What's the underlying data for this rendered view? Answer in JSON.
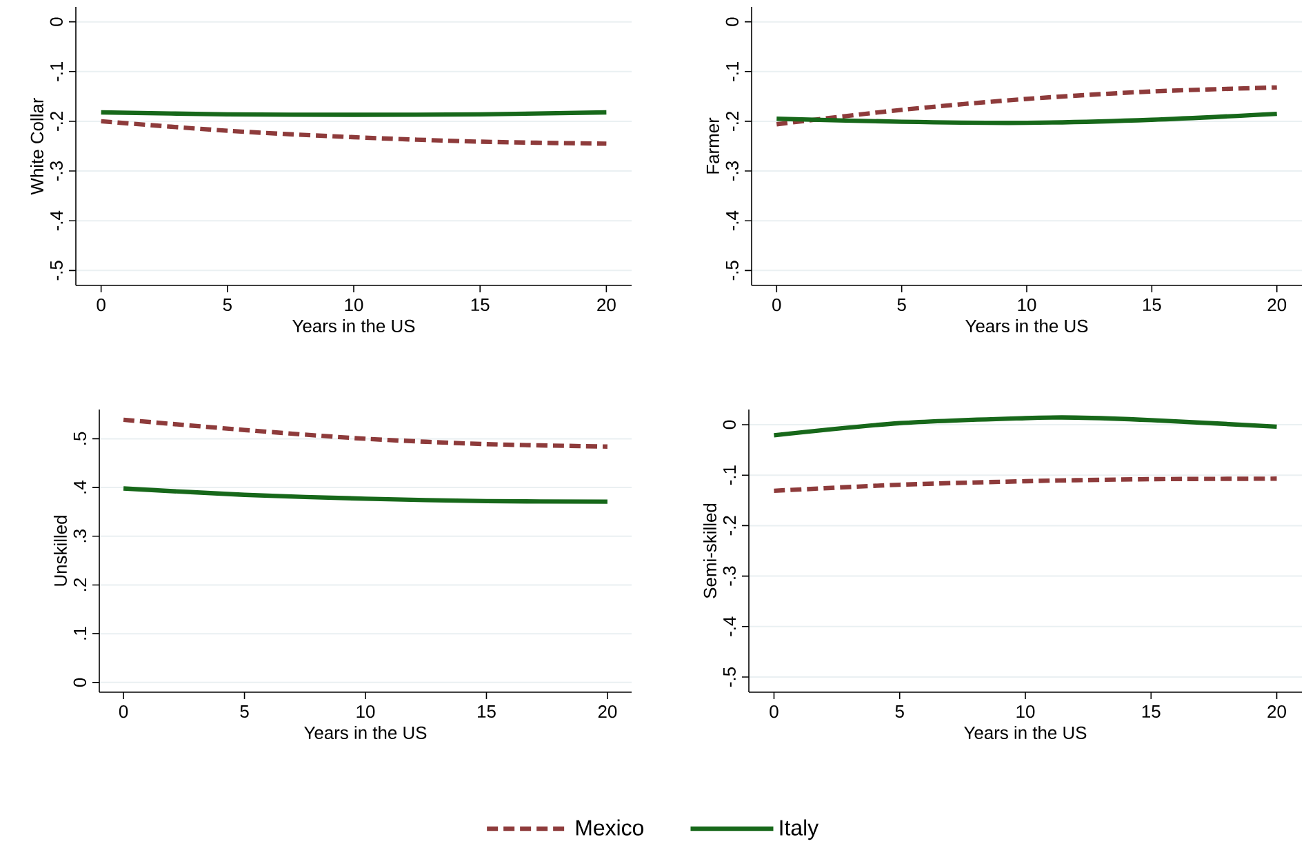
{
  "chart_data": [
    {
      "type": "line",
      "ylabel": "White Collar",
      "xlabel": "Years in the US",
      "xlim": [
        -1,
        21
      ],
      "xticks": [
        0,
        5,
        10,
        15,
        20
      ],
      "ylim": [
        -0.53,
        0.03
      ],
      "yticks": [
        {
          "value": 0,
          "label": "0"
        },
        {
          "value": -0.1,
          "label": "-.1"
        },
        {
          "value": -0.2,
          "label": "-.2"
        },
        {
          "value": -0.3,
          "label": "-.3"
        },
        {
          "value": -0.4,
          "label": "-.4"
        },
        {
          "value": -0.5,
          "label": "-.5"
        }
      ],
      "grid": "y",
      "legend": "bottom",
      "x": [
        0,
        5,
        10,
        15,
        20
      ],
      "series": [
        {
          "name": "Mexico",
          "color": "#8e3b3b",
          "line_style": "dashed",
          "values": [
            -0.2,
            -0.219,
            -0.232,
            -0.241,
            -0.245
          ]
        },
        {
          "name": "Italy",
          "color": "#17681a",
          "line_style": "solid",
          "values": [
            -0.182,
            -0.186,
            -0.187,
            -0.186,
            -0.182
          ]
        }
      ]
    },
    {
      "type": "line",
      "ylabel": "Farmer",
      "xlabel": "Years in the US",
      "xlim": [
        -1,
        21
      ],
      "xticks": [
        0,
        5,
        10,
        15,
        20
      ],
      "ylim": [
        -0.53,
        0.03
      ],
      "yticks": [
        {
          "value": 0,
          "label": "0"
        },
        {
          "value": -0.1,
          "label": "-.1"
        },
        {
          "value": -0.2,
          "label": "-.2"
        },
        {
          "value": -0.3,
          "label": "-.3"
        },
        {
          "value": -0.4,
          "label": "-.4"
        },
        {
          "value": -0.5,
          "label": "-.5"
        }
      ],
      "grid": "y",
      "x": [
        0,
        5,
        10,
        15,
        20
      ],
      "series": [
        {
          "color": "#8e3b3b",
          "line_style": "dashed",
          "values": [
            -0.206,
            -0.177,
            -0.155,
            -0.14,
            -0.132
          ]
        },
        {
          "color": "#17681a",
          "line_style": "solid",
          "values": [
            -0.195,
            -0.201,
            -0.203,
            -0.197,
            -0.185
          ]
        }
      ]
    },
    {
      "type": "line",
      "ylabel": "Unskilled",
      "xlabel": "Years in the US",
      "xlim": [
        -1,
        21
      ],
      "xticks": [
        0,
        5,
        10,
        15,
        20
      ],
      "ylim": [
        -0.02,
        0.56
      ],
      "yticks": [
        {
          "value": 0,
          "label": "0"
        },
        {
          "value": 0.1,
          "label": ".1"
        },
        {
          "value": 0.2,
          "label": ".2"
        },
        {
          "value": 0.3,
          "label": ".3"
        },
        {
          "value": 0.4,
          "label": ".4"
        },
        {
          "value": 0.5,
          "label": ".5"
        }
      ],
      "grid": "y",
      "x": [
        0,
        5,
        10,
        15,
        20
      ],
      "series": [
        {
          "color": "#8e3b3b",
          "line_style": "dashed",
          "values": [
            0.539,
            0.518,
            0.5,
            0.489,
            0.484
          ]
        },
        {
          "color": "#17681a",
          "line_style": "solid",
          "values": [
            0.398,
            0.385,
            0.377,
            0.372,
            0.371
          ]
        }
      ]
    },
    {
      "type": "line",
      "ylabel": "Semi-skilled",
      "xlabel": "Years in the US",
      "xlim": [
        -1,
        21
      ],
      "xticks": [
        0,
        5,
        10,
        15,
        20
      ],
      "ylim": [
        -0.53,
        0.03
      ],
      "yticks": [
        {
          "value": 0,
          "label": "0"
        },
        {
          "value": -0.1,
          "label": "-.1"
        },
        {
          "value": -0.2,
          "label": "-.2"
        },
        {
          "value": -0.3,
          "label": "-.3"
        },
        {
          "value": -0.4,
          "label": "-.4"
        },
        {
          "value": -0.5,
          "label": "-.5"
        }
      ],
      "grid": "y",
      "x": [
        0,
        5,
        10,
        12,
        15,
        20
      ],
      "series": [
        {
          "color": "#8e3b3b",
          "line_style": "dashed",
          "values": [
            -0.131,
            -0.119,
            -0.112,
            -0.11,
            -0.108,
            -0.107
          ]
        },
        {
          "color": "#17681a",
          "line_style": "solid",
          "values": [
            -0.021,
            0.003,
            0.013,
            0.014,
            0.009,
            -0.004
          ]
        }
      ]
    }
  ]
}
